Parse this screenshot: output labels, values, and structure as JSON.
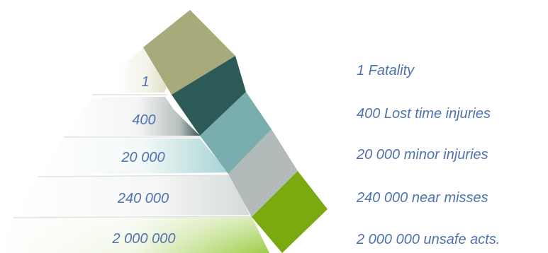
{
  "pyramid": {
    "levels": [
      {
        "value": "1",
        "description": "1 Fatality",
        "block_color": "#2b5a57"
      },
      {
        "value": "400",
        "description": "400 Lost time injuries",
        "block_color": "#7aaeae"
      },
      {
        "value": "20 000",
        "description": "20 000 minor injuries",
        "block_color": "#b3baba"
      },
      {
        "value": "240 000",
        "description": "240 000 near misses",
        "block_color": "#7aaa10"
      },
      {
        "value": "2 000 000",
        "description": "2 000 000 unsafe acts.",
        "block_color": "#7aaa10"
      }
    ],
    "apex_block_color": "#a9aa7c",
    "text_color": "#4f72b0"
  }
}
